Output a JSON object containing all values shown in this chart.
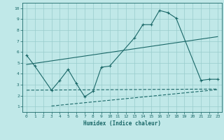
{
  "xlabel": "Humidex (Indice chaleur)",
  "background_color": "#c0e8e8",
  "grid_color": "#98cccc",
  "line_color": "#1a6868",
  "xlim": [
    -0.5,
    23.5
  ],
  "ylim": [
    0.5,
    10.5
  ],
  "xticks": [
    0,
    1,
    2,
    3,
    4,
    5,
    6,
    7,
    8,
    9,
    10,
    11,
    12,
    13,
    14,
    15,
    16,
    17,
    18,
    19,
    20,
    21,
    22,
    23
  ],
  "yticks": [
    1,
    2,
    3,
    4,
    5,
    6,
    7,
    8,
    9,
    10
  ],
  "main_x": [
    0,
    1,
    3,
    4,
    5,
    6,
    7,
    8,
    9,
    10,
    13,
    14,
    15,
    16,
    17,
    18,
    21,
    22,
    23
  ],
  "main_y": [
    5.7,
    4.7,
    2.5,
    3.4,
    4.4,
    3.1,
    1.9,
    2.4,
    4.6,
    4.7,
    7.3,
    8.5,
    8.5,
    9.8,
    9.6,
    9.1,
    3.4,
    3.5,
    3.5
  ],
  "upper_trend_x": [
    0,
    23
  ],
  "upper_trend_y": [
    4.85,
    7.4
  ],
  "mid_trend_x": [
    0,
    23
  ],
  "mid_trend_y": [
    2.5,
    2.6
  ],
  "lower_trend_x": [
    3,
    23
  ],
  "lower_trend_y": [
    1.05,
    2.55
  ]
}
